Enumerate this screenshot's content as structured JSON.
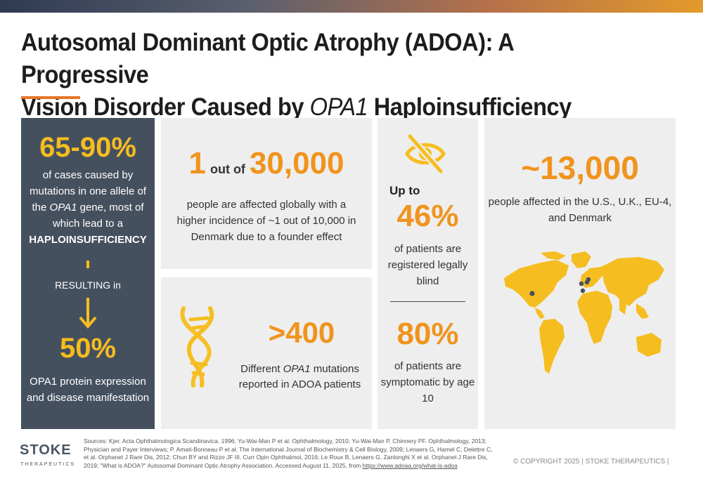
{
  "title": {
    "part1": "Autosomal Dominant Optic Atrophy (ADOA): A Progressive",
    "part2": "Vision Disorder Caused by ",
    "gene": "OPA1",
    "part3": " Haploinsufficiency"
  },
  "colors": {
    "accent_orange": "#f0941e",
    "accent_yellow": "#f5bd1f",
    "dark_panel": "#45505f",
    "panel_gray": "#eeeeee"
  },
  "left_panel": {
    "stat1": "65-90%",
    "desc1_a": "of cases caused by mutations in one allele of the ",
    "desc1_gene": "OPA1",
    "desc1_b": " gene, most of which lead to a ",
    "desc1_bold": "HAPLOINSUFFICIENCY",
    "resulting": "RESULTING in",
    "arrow_icon": "arrow-down-icon",
    "stat2": "50%",
    "desc2": "OPA1 protein expression and disease manifestation"
  },
  "incidence": {
    "num1": "1",
    "connector": "out of",
    "num2": "30,000",
    "desc": "people are affected globally with a higher incidence of ~1 out of 10,000 in Denmark due to a founder effect"
  },
  "mutations": {
    "icon": "dna-icon",
    "value": ">400",
    "desc_a": "Different ",
    "desc_gene": "OPA1",
    "desc_b": " mutations reported in ADOA patients"
  },
  "blindness": {
    "icon": "eye-slash-icon",
    "prefix": "Up to",
    "value1": "46%",
    "desc1": "of patients are registered legally blind",
    "value2": "80%",
    "desc2": "of patients are symptomatic by age 10"
  },
  "regional": {
    "value": "~13,000",
    "desc": "people affected in the U.S., U.K., EU-4, and Denmark",
    "map_icon": "world-map-icon"
  },
  "footer": {
    "logo_main": "STOKE",
    "logo_sub": "THERAPEUTICS",
    "sources_text": "Sources: Kjer. Acta Ophthalmologica Scandinavica. 1996; Yu-Wai-Man P et al. Ophthalmology, 2010; Yu-Wai-Man P, Chinnery PF. Ophthalmology, 2013; Physician and Payer Interviews; P. Amati-Bonneau P et al. The International Journal of Biochemistry & Cell Biology, 2009; Lenaers G, Hamel C, Delettre C, et al. Orphanet J Rare Dis, 2012; Chun BY and Rizzo JF III. Curr Opin Ophthalmol, 2016; Le Roux B, Lenaers G, Zanlonghi X et al. Orphanet J Rare Dis, 2019; \"What is ADOA?\" Autosomal Dominant Optic Atrophy Association. Accessed August 11, 2025, from ",
    "sources_link": "https://www.adoaa.org/what-is-adoa",
    "copyright": "© COPYRIGHT 2025  |  STOKE THERAPEUTICS  |"
  }
}
